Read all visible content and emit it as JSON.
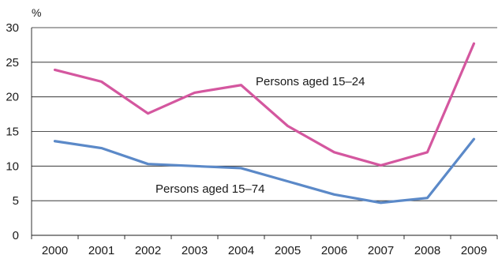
{
  "chart_data": {
    "type": "line",
    "title": "",
    "ylabel": "%",
    "xlabel": "",
    "categories": [
      "2000",
      "2001",
      "2002",
      "2003",
      "2004",
      "2005",
      "2006",
      "2007",
      "2008",
      "2009"
    ],
    "yticks": [
      0,
      5,
      10,
      15,
      20,
      25,
      30
    ],
    "ylim": [
      0,
      30
    ],
    "grid": true,
    "series": [
      {
        "name": "Persons aged 15–24",
        "color": "#d4579f",
        "values": [
          23.9,
          22.2,
          17.6,
          20.6,
          21.7,
          15.8,
          12.0,
          10.1,
          12.0,
          27.7
        ]
      },
      {
        "name": "Persons aged 15–74",
        "color": "#5b89c8",
        "values": [
          13.6,
          12.6,
          10.3,
          10.0,
          9.7,
          7.8,
          5.9,
          4.7,
          5.4,
          13.9
        ]
      }
    ]
  }
}
